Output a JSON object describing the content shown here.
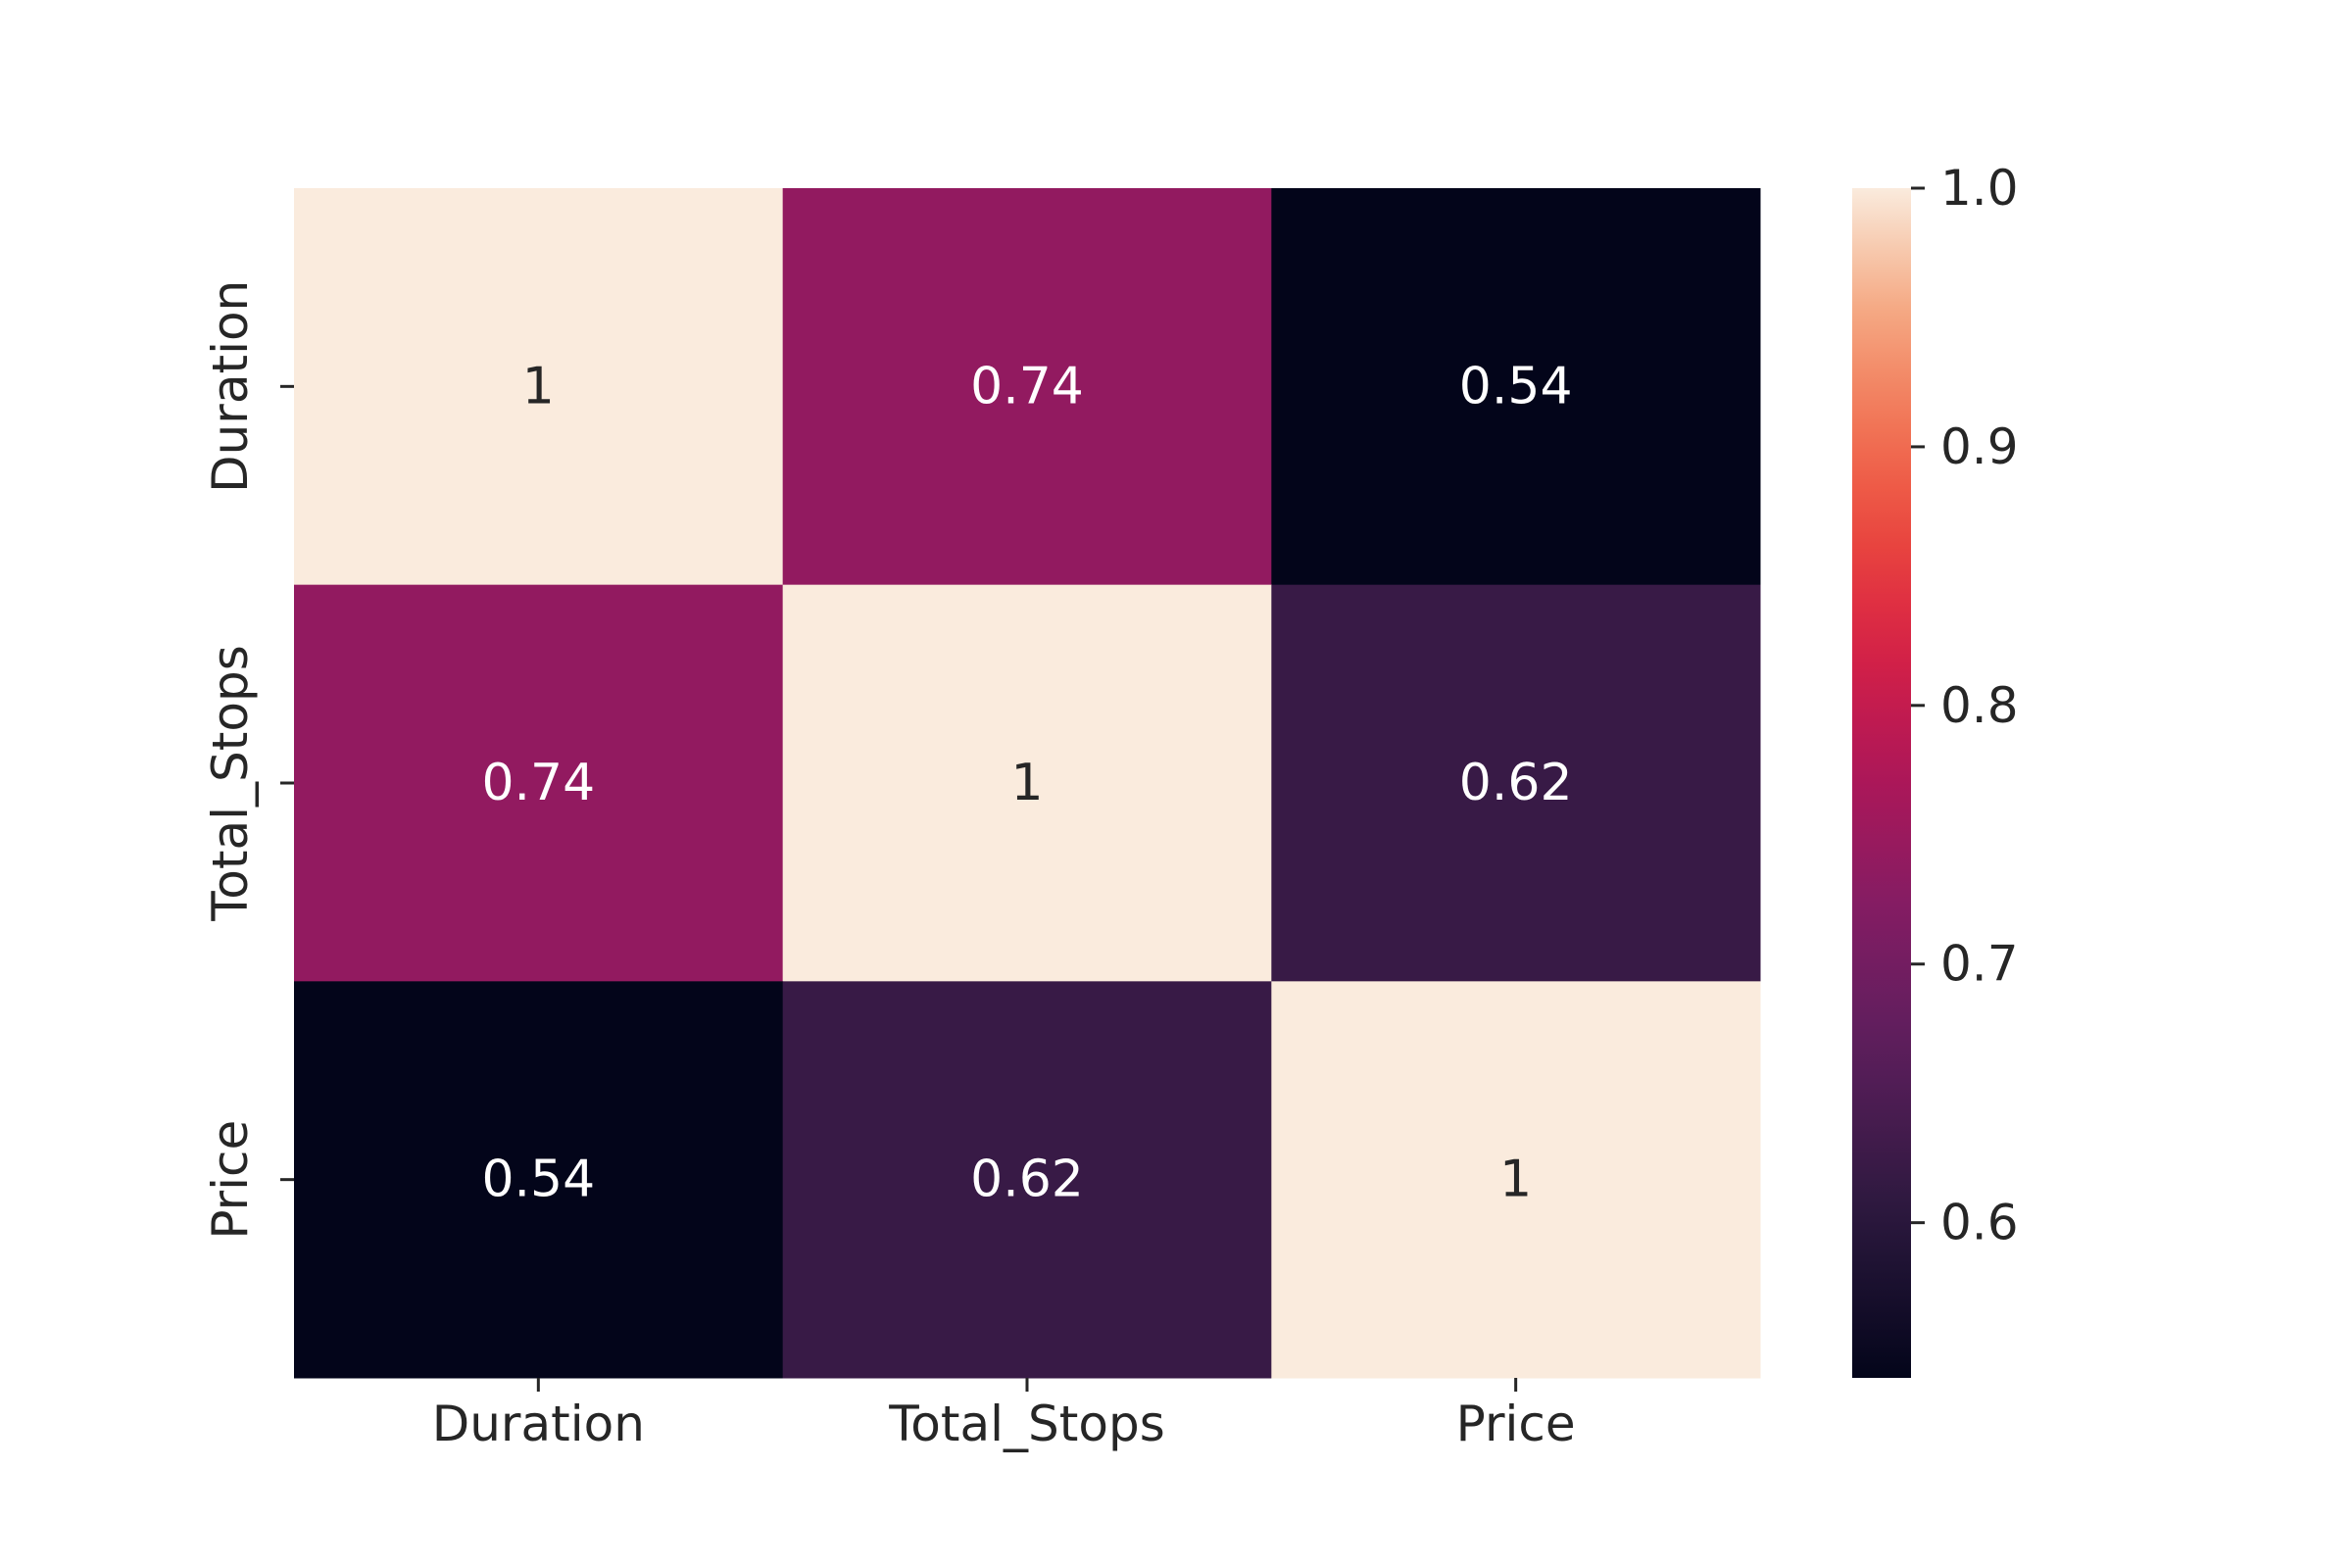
{
  "chart_data": {
    "type": "heatmap",
    "title": "",
    "xlabel": "",
    "ylabel": "",
    "x_categories": [
      "Duration",
      "Total_Stops",
      "Price"
    ],
    "y_categories": [
      "Duration",
      "Total_Stops",
      "Price"
    ],
    "matrix": [
      [
        1,
        0.74,
        0.54
      ],
      [
        0.74,
        1,
        0.62
      ],
      [
        0.54,
        0.62,
        1
      ]
    ],
    "annotations": [
      [
        "1",
        "0.74",
        "0.54"
      ],
      [
        "0.74",
        "1",
        "0.62"
      ],
      [
        "0.54",
        "0.62",
        "1"
      ]
    ],
    "colorbar": {
      "vmin": 0.54,
      "vmax": 1.0,
      "ticks": [
        0.6,
        0.7,
        0.8,
        0.9,
        1.0
      ],
      "tick_labels": [
        "0.6",
        "0.7",
        "0.8",
        "0.9",
        "1.0"
      ],
      "placement": "right",
      "colormap": "rocket"
    },
    "grid": false
  }
}
